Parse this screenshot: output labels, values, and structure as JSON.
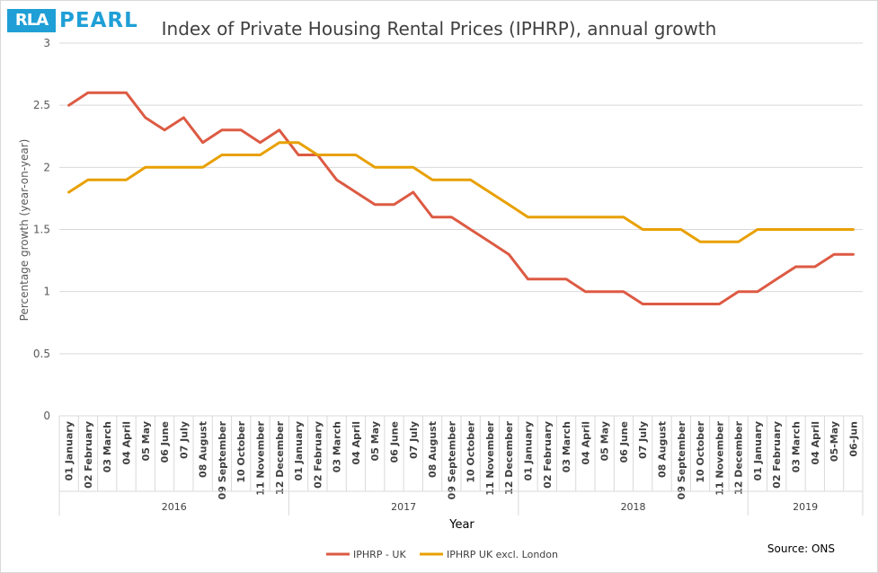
{
  "logo": {
    "mark": "RLA",
    "name": "PEARL"
  },
  "title": "Index of Private Housing Rental Prices (IPHRP), annual growth",
  "source": "Source: ONS",
  "colors": {
    "uk": "#dd5a43",
    "excl_london": "#e8a000",
    "grid": "#d9d9d9",
    "axis_text": "#595959"
  },
  "chart_data": {
    "type": "line",
    "title": "Index of Private Housing Rental Prices (IPHRP), annual growth",
    "xlabel": "Year",
    "ylabel": "Percentage growth (year-on-year)",
    "ylim": [
      0,
      3
    ],
    "yticks": [
      0,
      0.5,
      1,
      1.5,
      2,
      2.5,
      3
    ],
    "grid": true,
    "legend_position": "bottom",
    "categories": [
      "01 January",
      "02 February",
      "03 March",
      "04 April",
      "05 May",
      "06 June",
      "07 July",
      "08 August",
      "09 September",
      "10 October",
      "11 November",
      "12 December",
      "01 January",
      "02 February",
      "03 March",
      "04 April",
      "05 May",
      "06 June",
      "07 July",
      "08 August",
      "09 September",
      "10 October",
      "11 November",
      "12 December",
      "01 January",
      "02 February",
      "03 March",
      "04 April",
      "05 May",
      "06 June",
      "07 July",
      "08 August",
      "09 September",
      "10 October",
      "11 November",
      "12 December",
      "01 January",
      "02 February",
      "03 March",
      "04 April",
      "05-May",
      "06-Jun"
    ],
    "groups": [
      {
        "label": "2016",
        "count": 12
      },
      {
        "label": "2017",
        "count": 12
      },
      {
        "label": "2018",
        "count": 12
      },
      {
        "label": "2019",
        "count": 6
      }
    ],
    "series": [
      {
        "name": "IPHRP - UK",
        "color": "#dd5a43",
        "values": [
          2.5,
          2.6,
          2.6,
          2.6,
          2.4,
          2.3,
          2.4,
          2.2,
          2.3,
          2.3,
          2.2,
          2.3,
          2.1,
          2.1,
          1.9,
          1.8,
          1.7,
          1.7,
          1.8,
          1.6,
          1.6,
          1.5,
          1.4,
          1.3,
          1.1,
          1.1,
          1.1,
          1.0,
          1.0,
          1.0,
          0.9,
          0.9,
          0.9,
          0.9,
          0.9,
          1.0,
          1.0,
          1.1,
          1.2,
          1.2,
          1.3,
          1.3
        ]
      },
      {
        "name": "IPHRP UK excl. London",
        "color": "#e8a000",
        "values": [
          1.8,
          1.9,
          1.9,
          1.9,
          2.0,
          2.0,
          2.0,
          2.0,
          2.1,
          2.1,
          2.1,
          2.2,
          2.2,
          2.1,
          2.1,
          2.1,
          2.0,
          2.0,
          2.0,
          1.9,
          1.9,
          1.9,
          1.8,
          1.7,
          1.6,
          1.6,
          1.6,
          1.6,
          1.6,
          1.6,
          1.5,
          1.5,
          1.5,
          1.4,
          1.4,
          1.4,
          1.5,
          1.5,
          1.5,
          1.5,
          1.5,
          1.5
        ]
      }
    ]
  }
}
